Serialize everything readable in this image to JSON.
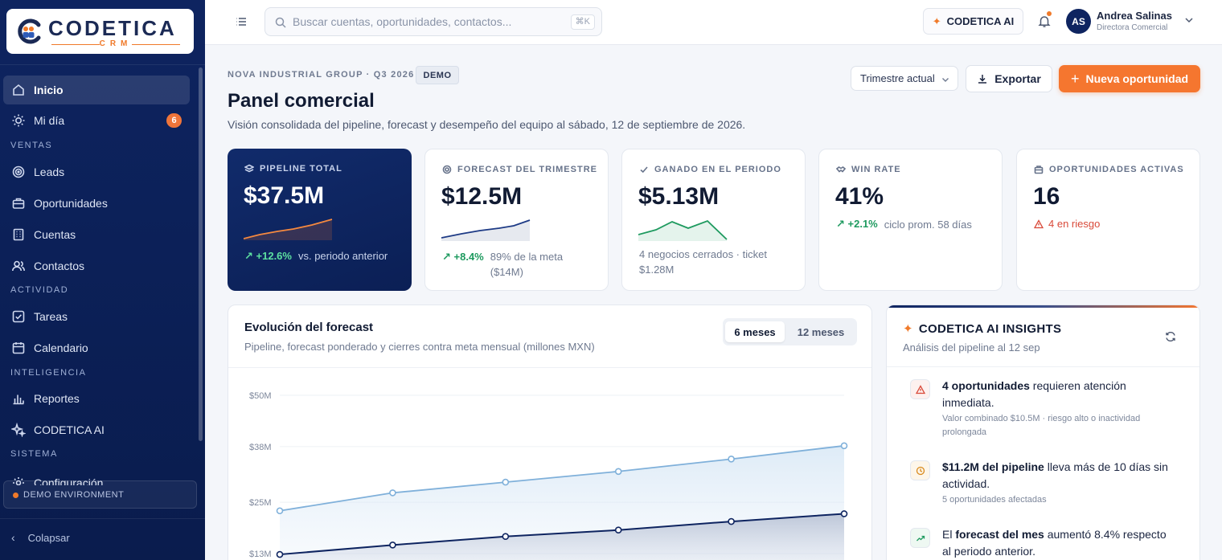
{
  "brand": {
    "name": "CODETICA",
    "sub": "CRM"
  },
  "sidebar": {
    "items": [
      {
        "label": "Inicio"
      },
      {
        "label": "Mi día",
        "badge": "6"
      },
      {
        "label": "Leads"
      },
      {
        "label": "Oportunidades"
      },
      {
        "label": "Cuentas"
      },
      {
        "label": "Contactos"
      },
      {
        "label": "Tareas"
      },
      {
        "label": "Calendario"
      },
      {
        "label": "Reportes"
      },
      {
        "label": "CODETICA AI"
      },
      {
        "label": "Configuración"
      }
    ],
    "sections": {
      "ventas": "VENTAS",
      "actividad": "ACTIVIDAD",
      "inteligencia": "INTELIGENCIA",
      "sistema": "SISTEMA"
    },
    "demo_env": "DEMO ENVIRONMENT",
    "collapse": "Colapsar"
  },
  "header": {
    "search_placeholder": "Buscar cuentas, oportunidades, contactos...",
    "shortcut": "⌘K",
    "ai_button": "CODETICA AI",
    "user": {
      "initials": "AS",
      "name": "Andrea Salinas",
      "role": "Directora Comercial"
    }
  },
  "page": {
    "breadcrumb": "NOVA INDUSTRIAL GROUP · Q3 2026",
    "demo_tag": "DEMO",
    "title": "Panel comercial",
    "subtitle": "Visión consolidada del pipeline, forecast y desempeño del equipo al sábado, 12 de septiembre de 2026.",
    "period_select": "Trimestre actual",
    "export": "Exportar",
    "new_opportunity": "Nueva oportunidad"
  },
  "kpis": {
    "pipeline": {
      "label": "PIPELINE TOTAL",
      "value": "$37.5M",
      "delta": "+12.6%",
      "note": "vs. periodo anterior"
    },
    "forecast": {
      "label": "FORECAST DEL TRIMESTRE",
      "value": "$12.5M",
      "delta": "+8.4%",
      "note": "89% de la meta ($14M)"
    },
    "won": {
      "label": "GANADO EN EL PERIODO",
      "value": "$5.13M",
      "note": "4 negocios cerrados · ticket $1.28M"
    },
    "winrate": {
      "label": "WIN RATE",
      "value": "41%",
      "delta": "+2.1%",
      "note": "ciclo prom. 58 días"
    },
    "active": {
      "label": "OPORTUNIDADES ACTIVAS",
      "value": "16",
      "risk": "4 en riesgo"
    }
  },
  "forecast_chart": {
    "title": "Evolución del forecast",
    "subtitle": "Pipeline, forecast ponderado y cierres contra meta mensual (millones MXN)",
    "ranges": [
      "6 meses",
      "12 meses"
    ],
    "selected_range": "6 meses"
  },
  "chart_data": {
    "type": "area",
    "y_ticks": [
      "$50M",
      "$38M",
      "$25M",
      "$13M"
    ],
    "tick_values": [
      50,
      38,
      25,
      13
    ],
    "series": [
      {
        "values": [
          23,
          27.2,
          29.7,
          32.2,
          35.1,
          38.2
        ],
        "color": "#7fb0da"
      },
      {
        "values": [
          12.8,
          15,
          17,
          18.5,
          20.5,
          22.3
        ],
        "color": "#0e2460"
      }
    ]
  },
  "insights": {
    "title": "CODETICA AI INSIGHTS",
    "subtitle": "Análisis del pipeline al 12 sep",
    "items": [
      {
        "bold": "4 oportunidades",
        "text": " requieren atención inmediata.",
        "sub": "Valor combinado $10.5M · riesgo alto o inactividad prolongada"
      },
      {
        "bold": "$11.2M del pipeline",
        "text": " lleva más de 10 días sin actividad.",
        "sub": "5 oportunidades afectadas"
      },
      {
        "pre": "El ",
        "bold": "forecast del mes",
        "text": " aumentó 8.4% respecto al periodo anterior."
      }
    ]
  },
  "colors": {
    "accent": "#f5762f",
    "navy": "#0e2460",
    "positive": "#1e9a5f",
    "danger": "#d94a3a"
  }
}
